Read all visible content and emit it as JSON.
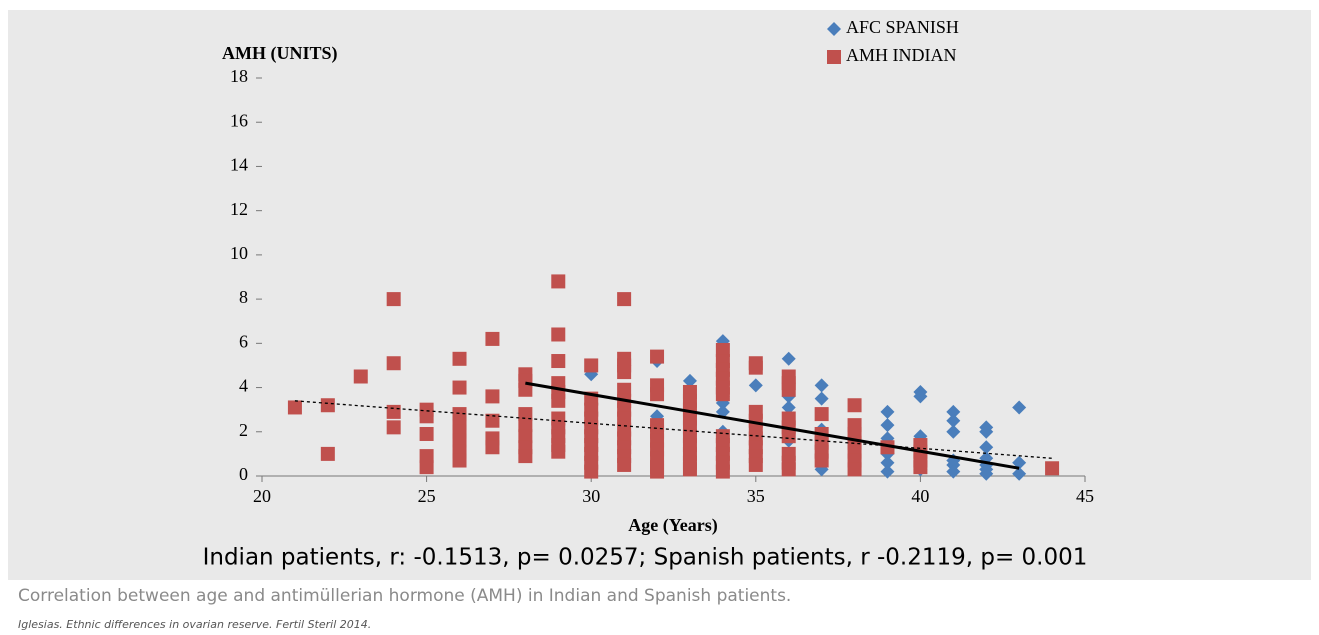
{
  "chart_data": {
    "type": "scatter",
    "ylabel": "AMH (UNITS)",
    "xlabel": "Age (Years)",
    "subtitle": "Indian patients, r: -0.1513, p= 0.0257; Spanish patients, r -0.2119, p= 0.001",
    "xlim": [
      20,
      45
    ],
    "xticks": [
      20,
      25,
      30,
      35,
      40,
      45
    ],
    "ylim": [
      0,
      18
    ],
    "yticks": [
      0,
      2,
      4,
      6,
      8,
      10,
      12,
      14,
      16,
      18
    ],
    "legend": "top",
    "series": [
      {
        "name": "AFC SPANISH",
        "color": "#4a7ebb",
        "marker": "diamond",
        "x": [
          30,
          32,
          32,
          33,
          33,
          34,
          34,
          34,
          34,
          34,
          35,
          36,
          36,
          36,
          36,
          37,
          37,
          37,
          37,
          39,
          39,
          39,
          39,
          39,
          39,
          40,
          40,
          40,
          40,
          41,
          41,
          41,
          41,
          41,
          41,
          42,
          42,
          42,
          42,
          42,
          42,
          42,
          43,
          43,
          43
        ],
        "values": [
          4.6,
          5.2,
          2.7,
          4.3,
          3.9,
          6.1,
          3.6,
          3.3,
          2.9,
          2.0,
          4.1,
          5.3,
          3.6,
          3.1,
          1.6,
          4.1,
          3.5,
          2.1,
          0.3,
          2.9,
          2.3,
          1.7,
          1.0,
          0.6,
          0.2,
          3.8,
          3.6,
          1.8,
          0.3,
          2.9,
          2.5,
          2.0,
          0.7,
          0.5,
          0.2,
          2.2,
          2.0,
          1.3,
          0.8,
          0.5,
          0.3,
          0.1,
          3.1,
          0.6,
          0.1
        ]
      },
      {
        "name": "AMH INDIAN",
        "color": "#c0504d",
        "marker": "square",
        "x": [
          21,
          22,
          22,
          23,
          24,
          24,
          24,
          24,
          25,
          25,
          25,
          25,
          25,
          26,
          26,
          26,
          26,
          26,
          26,
          26,
          26,
          27,
          27,
          27,
          27,
          27,
          28,
          28,
          28,
          28,
          28,
          28,
          28,
          28,
          29,
          29,
          29,
          29,
          29,
          29,
          29,
          29,
          29,
          29,
          29,
          30,
          30,
          30,
          30,
          30,
          30,
          30,
          30,
          30,
          30,
          31,
          31,
          31,
          31,
          31,
          31,
          31,
          31,
          31,
          31,
          31,
          31,
          31,
          32,
          32,
          32,
          32,
          32,
          32,
          32,
          32,
          32,
          32,
          33,
          33,
          33,
          33,
          33,
          33,
          33,
          33,
          33,
          33,
          34,
          34,
          34,
          34,
          34,
          34,
          34,
          34,
          34,
          34,
          34,
          35,
          35,
          35,
          35,
          35,
          35,
          35,
          35,
          35,
          36,
          36,
          36,
          36,
          36,
          36,
          36,
          36,
          36,
          37,
          37,
          37,
          37,
          37,
          38,
          38,
          38,
          38,
          38,
          38,
          38,
          39,
          40,
          40,
          40,
          40,
          44
        ],
        "values": [
          3.1,
          3.2,
          1.0,
          4.5,
          8.0,
          5.1,
          2.9,
          2.2,
          3.0,
          2.7,
          1.9,
          0.9,
          0.4,
          5.3,
          4.0,
          2.8,
          2.4,
          2.0,
          1.6,
          1.1,
          0.7,
          6.2,
          3.6,
          2.5,
          1.7,
          1.3,
          4.6,
          4.3,
          3.9,
          2.8,
          2.3,
          1.8,
          1.3,
          0.9,
          8.8,
          6.4,
          5.2,
          4.2,
          3.8,
          3.4,
          2.6,
          2.2,
          1.8,
          1.4,
          1.1,
          5.0,
          3.5,
          3.0,
          2.6,
          2.2,
          1.8,
          1.4,
          1.0,
          0.6,
          0.2,
          8.0,
          5.3,
          5.0,
          4.7,
          3.9,
          3.4,
          3.0,
          2.6,
          2.1,
          1.7,
          1.3,
          0.9,
          0.5,
          5.4,
          4.1,
          3.7,
          2.3,
          2.0,
          1.6,
          1.2,
          0.8,
          0.4,
          0.2,
          3.8,
          3.4,
          3.0,
          2.6,
          2.2,
          1.8,
          1.4,
          1.0,
          0.6,
          0.3,
          5.7,
          5.2,
          4.8,
          4.4,
          4.0,
          3.7,
          1.8,
          1.4,
          1.0,
          0.6,
          0.2,
          5.1,
          4.9,
          2.9,
          2.5,
          2.1,
          1.7,
          1.3,
          0.9,
          0.5,
          4.5,
          4.2,
          3.9,
          2.6,
          2.2,
          1.8,
          1.0,
          0.6,
          0.3,
          2.8,
          1.9,
          1.5,
          1.1,
          0.7,
          3.2,
          2.3,
          1.9,
          1.5,
          1.1,
          0.7,
          0.3,
          1.3,
          1.4,
          1.1,
          0.7,
          0.4,
          0.35
        ]
      }
    ],
    "trendlines": [
      {
        "x": [
          21,
          44
        ],
        "values": [
          3.4,
          0.8
        ],
        "color": "#000000",
        "style": "dotted"
      },
      {
        "x": [
          28,
          43
        ],
        "values": [
          4.2,
          0.35
        ],
        "color": "#000000",
        "style": "solid"
      }
    ]
  },
  "figure": {
    "caption": "Correlation between age and antimüllerian hormone (AMH) in Indian and Spanish patients.",
    "source": "Iglesias. Ethnic differences in ovarian reserve. Fertil Steril 2014."
  }
}
